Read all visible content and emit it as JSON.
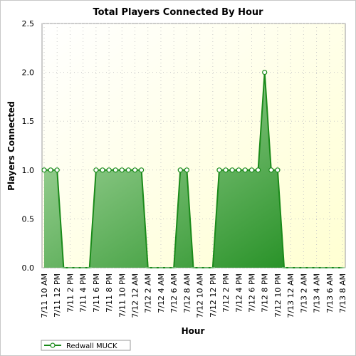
{
  "chart_data": {
    "type": "area",
    "title": "Total Players Connected By Hour",
    "xlabel": "Hour",
    "ylabel": "Players Connected",
    "ylim": [
      0,
      2.5
    ],
    "yticks": [
      "0.0",
      "0.5",
      "1.0",
      "1.5",
      "2.0",
      "2.5"
    ],
    "grid": true,
    "legend_position": "bottom-left",
    "x": [
      "7/11 10 AM",
      "7/11 11 AM",
      "7/11 12 PM",
      "7/11 1 PM",
      "7/11 2 PM",
      "7/11 3 PM",
      "7/11 4 PM",
      "7/11 5 PM",
      "7/11 6 PM",
      "7/11 7 PM",
      "7/11 8 PM",
      "7/11 9 PM",
      "7/11 10 PM",
      "7/11 11 PM",
      "7/12 12 AM",
      "7/12 1 AM",
      "7/12 2 AM",
      "7/12 3 AM",
      "7/12 4 AM",
      "7/12 5 AM",
      "7/12 6 AM",
      "7/12 7 AM",
      "7/12 8 AM",
      "7/12 9 AM",
      "7/12 10 AM",
      "7/12 11 AM",
      "7/12 12 PM",
      "7/12 1 PM",
      "7/12 2 PM",
      "7/12 3 PM",
      "7/12 4 PM",
      "7/12 5 PM",
      "7/12 6 PM",
      "7/12 7 PM",
      "7/12 8 PM",
      "7/12 9 PM",
      "7/12 10 PM",
      "7/12 11 PM",
      "7/13 12 AM",
      "7/13 1 AM",
      "7/13 2 AM",
      "7/13 3 AM",
      "7/13 4 AM",
      "7/13 5 AM",
      "7/13 6 AM",
      "7/13 7 AM",
      "7/13 8 AM"
    ],
    "tick_labels": [
      "7/11 10 AM",
      "7/11 12 PM",
      "7/11 2 PM",
      "7/11 4 PM",
      "7/11 6 PM",
      "7/11 8 PM",
      "7/11 10 PM",
      "7/12 12 AM",
      "7/12 2 AM",
      "7/12 4 AM",
      "7/12 6 AM",
      "7/12 8 AM",
      "7/12 10 AM",
      "7/12 12 PM",
      "7/12 2 PM",
      "7/12 4 PM",
      "7/12 6 PM",
      "7/12 8 PM",
      "7/12 10 PM",
      "7/13 12 AM",
      "7/13 2 AM",
      "7/13 4 AM",
      "7/13 6 AM",
      "7/13 8 AM"
    ],
    "series": [
      {
        "name": "Redwall MUCK",
        "color": "#1a8a1a",
        "values": [
          1,
          1,
          1,
          0,
          0,
          0,
          0,
          0,
          1,
          1,
          1,
          1,
          1,
          1,
          1,
          1,
          0,
          0,
          0,
          0,
          0,
          1,
          1,
          0,
          0,
          0,
          0,
          1,
          1,
          1,
          1,
          1,
          1,
          1,
          2,
          1,
          1,
          0,
          0,
          0,
          0,
          0,
          0,
          0,
          0,
          0,
          0
        ]
      }
    ]
  }
}
